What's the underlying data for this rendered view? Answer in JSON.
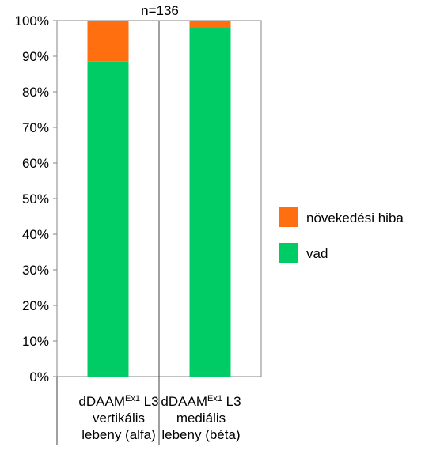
{
  "chart_data": {
    "type": "bar",
    "stacked": true,
    "annotation": "n=136",
    "categories": [
      {
        "name": "dDAAM",
        "sup": "Ex1",
        "suffix": " L3",
        "line2": "vertikális",
        "line3": "lebeny (alfa)"
      },
      {
        "name": "dDAAM",
        "sup": "Ex1",
        "suffix": " L3",
        "line2": "mediális",
        "line3": "lebeny (béta)"
      }
    ],
    "series": [
      {
        "name": "vad",
        "color": "#00CC66",
        "values": [
          88.5,
          98
        ]
      },
      {
        "name": "növekedési hiba",
        "color": "#FF6F0F",
        "values": [
          11.5,
          2
        ]
      }
    ],
    "ylim": [
      0,
      100
    ],
    "yticks": [
      "0%",
      "10%",
      "20%",
      "30%",
      "40%",
      "50%",
      "60%",
      "70%",
      "80%",
      "90%",
      "100%"
    ],
    "grid": false,
    "legend": "right"
  }
}
